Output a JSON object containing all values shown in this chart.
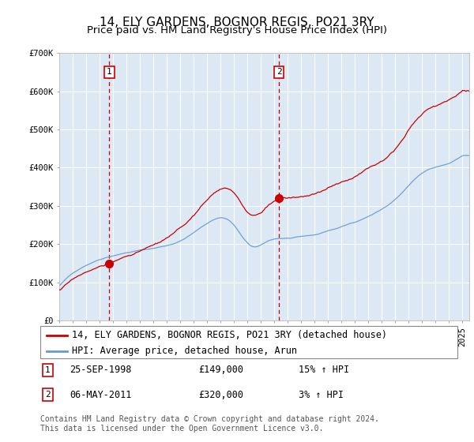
{
  "title": "14, ELY GARDENS, BOGNOR REGIS, PO21 3RY",
  "subtitle": "Price paid vs. HM Land Registry's House Price Index (HPI)",
  "ylim": [
    0,
    700000
  ],
  "xlim_start": 1995.0,
  "xlim_end": 2025.5,
  "background_color": "#ffffff",
  "plot_bg_color": "#dce9f5",
  "grid_color": "#ffffff",
  "sale1_x": 1998.73,
  "sale1_y": 149000,
  "sale1_label": "1",
  "sale1_date": "25-SEP-1998",
  "sale1_price": "£149,000",
  "sale1_hpi": "15% ↑ HPI",
  "sale2_x": 2011.35,
  "sale2_y": 320000,
  "sale2_label": "2",
  "sale2_date": "06-MAY-2011",
  "sale2_price": "£320,000",
  "sale2_hpi": "3% ↑ HPI",
  "hpi_line_color": "#6699cc",
  "price_line_color": "#cc0000",
  "dashed_line_color": "#cc0000",
  "legend_label_price": "14, ELY GARDENS, BOGNOR REGIS, PO21 3RY (detached house)",
  "legend_label_hpi": "HPI: Average price, detached house, Arun",
  "footnote": "Contains HM Land Registry data © Crown copyright and database right 2024.\nThis data is licensed under the Open Government Licence v3.0.",
  "yticks": [
    0,
    100000,
    200000,
    300000,
    400000,
    500000,
    600000,
    700000
  ],
  "ytick_labels": [
    "£0",
    "£100K",
    "£200K",
    "£300K",
    "£400K",
    "£500K",
    "£600K",
    "£700K"
  ],
  "title_fontsize": 11,
  "subtitle_fontsize": 9.5,
  "tick_fontsize": 7.5,
  "legend_fontsize": 8.5,
  "footnote_fontsize": 7
}
